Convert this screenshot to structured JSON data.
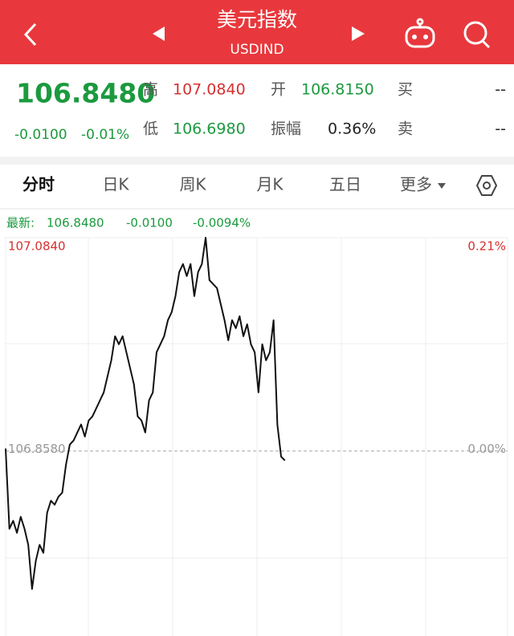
{
  "header": {
    "title": "美元指数",
    "subtitle": "USDIND"
  },
  "quote": {
    "price": "106.8480",
    "change": "-0.0100",
    "change_pct": "-0.01%",
    "high_label": "高",
    "high": "107.0840",
    "open_label": "开",
    "open": "106.8150",
    "buy_label": "买",
    "buy": "--",
    "low_label": "低",
    "low": "106.6980",
    "amplitude_label": "振幅",
    "amplitude": "0.36%",
    "sell_label": "卖",
    "sell": "--"
  },
  "tabs": [
    "分时",
    "日K",
    "周K",
    "月K",
    "五日",
    "更多"
  ],
  "latest": {
    "label": "最新:",
    "price": "106.8480",
    "change": "-0.0100",
    "change_pct": "-0.0094%"
  },
  "chart_data": {
    "type": "line",
    "series": [
      {
        "color": "#111111",
        "values": [
          106.8606,
          106.7756,
          106.7841,
          106.7713,
          106.7883,
          106.7756,
          106.7586,
          106.7118,
          106.7416,
          106.7586,
          106.7501,
          106.7926,
          106.8053,
          106.8011,
          106.8096,
          106.8138,
          106.8436,
          106.8648,
          106.8691,
          106.8776,
          106.8861,
          106.8733,
          106.8903,
          106.8946,
          106.9031,
          106.9116,
          106.9201,
          106.9371,
          106.9541,
          106.9796,
          106.9711,
          106.9796,
          106.9626,
          106.9456,
          106.9286,
          106.8946,
          106.8903,
          106.8776,
          106.9116,
          106.9201,
          106.9626,
          106.9711,
          106.9796,
          106.9966,
          107.0051,
          107.0221,
          107.0476,
          107.0561,
          107.0433,
          107.0561,
          107.0221,
          107.0476,
          107.0561,
          107.084,
          107.0391,
          107.0348,
          107.0306,
          107.0136,
          106.9966,
          106.9753,
          106.9966,
          106.9881,
          107.0008,
          106.9796,
          106.9923,
          106.9711,
          106.9626,
          106.9201,
          106.9711,
          106.9541,
          106.9626,
          106.9966,
          106.8861,
          106.852,
          106.848,
          null,
          null,
          null,
          null,
          null,
          null,
          null,
          null,
          null,
          null,
          null,
          null,
          null,
          null,
          null,
          null,
          null,
          null,
          null,
          null,
          null,
          null,
          null,
          null,
          null,
          null,
          null,
          null,
          null,
          null,
          null,
          null,
          null,
          null,
          null,
          null,
          null,
          null,
          null,
          null,
          null,
          null,
          null,
          null,
          null,
          null,
          null,
          null,
          null,
          null,
          null,
          null,
          null,
          null,
          null,
          null,
          null,
          null,
          null
        ]
      }
    ],
    "ylim": [
      106.662,
      107.084
    ],
    "yticks": [
      {
        "value": 107.084,
        "label": "107.0840"
      },
      {
        "value": 106.858,
        "label": "106.8580"
      }
    ],
    "y2lim": [
      -0.1834,
      0.2115
    ],
    "y2ticks": [
      {
        "value": 0.21,
        "label": "0.21%"
      },
      {
        "value": 0,
        "label": "0.00%"
      }
    ]
  }
}
